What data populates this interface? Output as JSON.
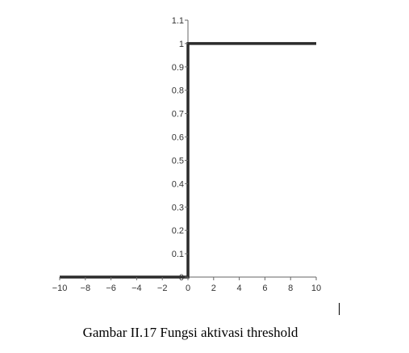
{
  "chart_data": {
    "type": "line",
    "title": "",
    "xlabel": "",
    "ylabel": "",
    "xlim": [
      -10,
      10
    ],
    "ylim": [
      0,
      1.1
    ],
    "grid": false,
    "x_ticks": [
      -10,
      -8,
      -6,
      -4,
      -2,
      0,
      2,
      4,
      6,
      8,
      10
    ],
    "x_tick_labels": [
      "−10",
      "−8",
      "−6",
      "−4",
      "−2",
      "0",
      "2",
      "4",
      "6",
      "8",
      "10"
    ],
    "y_ticks": [
      0,
      0.1,
      0.2,
      0.3,
      0.4,
      0.5,
      0.6,
      0.7,
      0.8,
      0.9,
      1,
      1.1
    ],
    "y_tick_labels": [
      "0",
      "0.1",
      "0.2",
      "0.3",
      "0.4",
      "0.5",
      "0.6",
      "0.7",
      "0.8",
      "0.9",
      "1",
      "1.1"
    ],
    "series": [
      {
        "color": "#2b2b2b",
        "x": [
          -10,
          0,
          0,
          10
        ],
        "y": [
          0,
          0,
          1,
          1
        ]
      }
    ]
  },
  "caption": "Gambar II.17 Fungsi aktivasi threshold"
}
